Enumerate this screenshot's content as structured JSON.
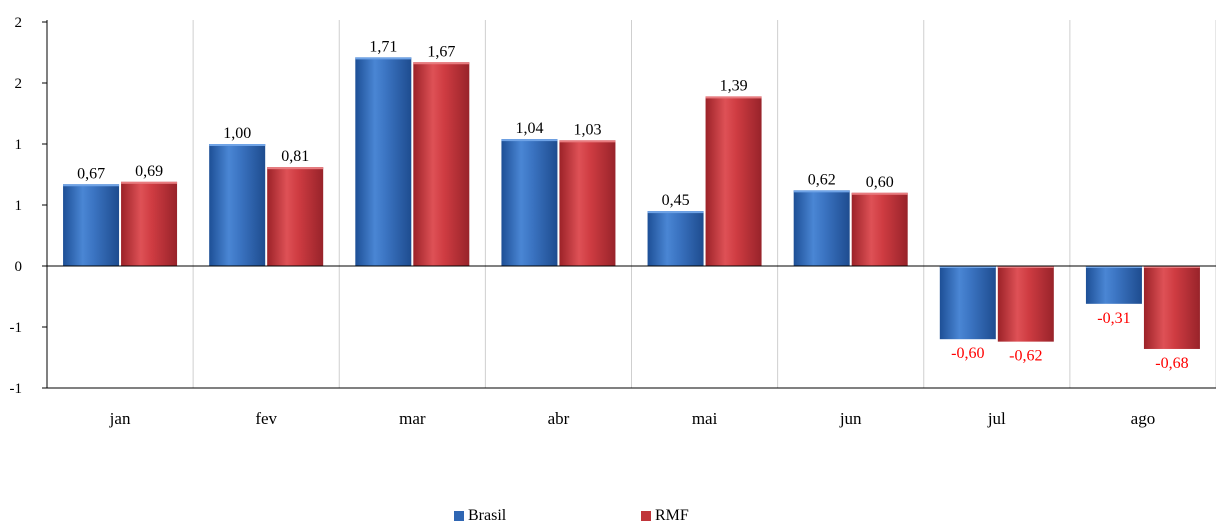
{
  "chart_data": {
    "type": "bar",
    "categories": [
      "jan",
      "fev",
      "mar",
      "abr",
      "mai",
      "jun",
      "jul",
      "ago"
    ],
    "series": [
      {
        "name": "Brasil",
        "color": "#2f66b3",
        "values": [
          0.67,
          1.0,
          1.71,
          1.04,
          0.45,
          0.62,
          -0.6,
          -0.31
        ],
        "labels": [
          "0,67",
          "1,00",
          "1,71",
          "1,04",
          "0,45",
          "0,62",
          "-0,60",
          "-0,31"
        ]
      },
      {
        "name": "RMF",
        "color": "#c0353a",
        "values": [
          0.69,
          0.81,
          1.67,
          1.03,
          1.39,
          0.6,
          -0.62,
          -0.68
        ],
        "labels": [
          "0,69",
          "0,81",
          "1,67",
          "1,03",
          "1,39",
          "0,60",
          "-0,62",
          "-0,68"
        ]
      }
    ],
    "ylim": [
      -1,
      2
    ],
    "y_tick_labels": [
      "-1",
      "-1",
      "0",
      "1",
      "1",
      "2",
      "2"
    ],
    "negative_label_color": "#ff0000",
    "grid": "vertical category separators",
    "legend_placement": "bottom-center"
  }
}
